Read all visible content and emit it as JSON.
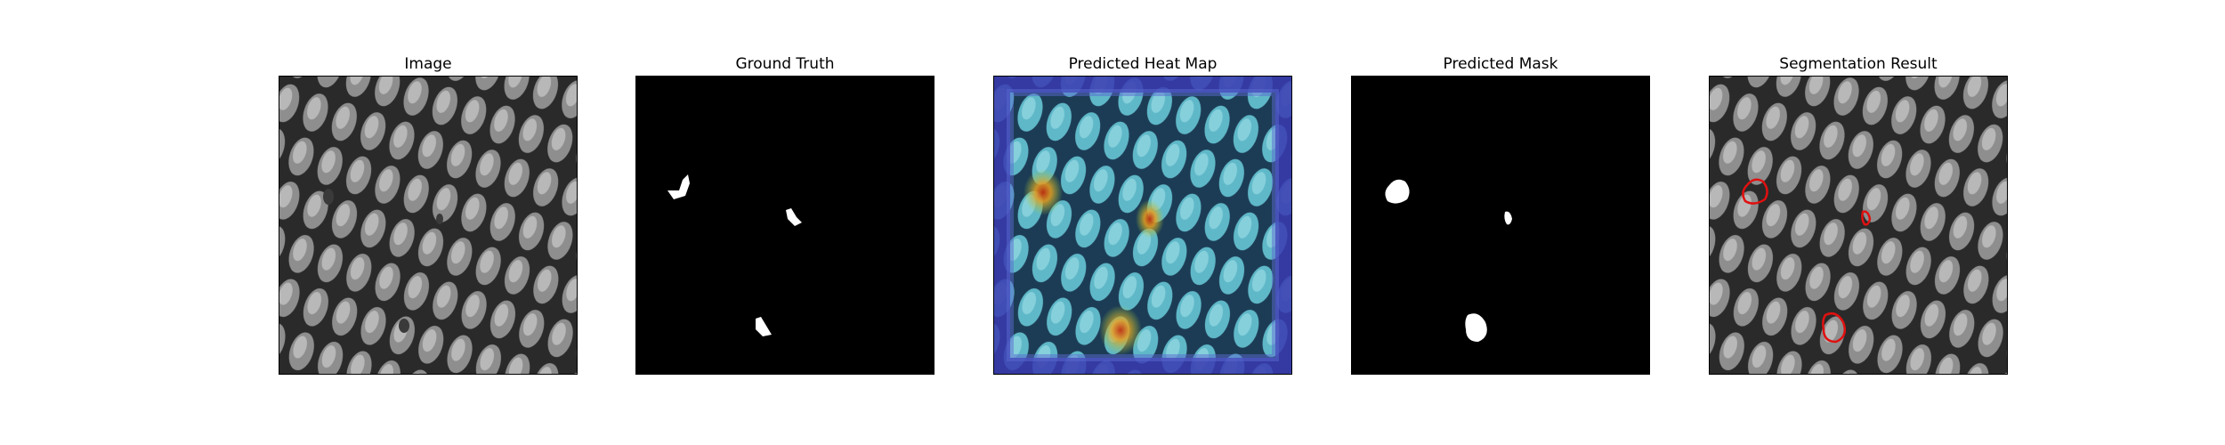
{
  "panels": [
    {
      "title": "Image"
    },
    {
      "title": "Ground Truth"
    },
    {
      "title": "Predicted Heat Map"
    },
    {
      "title": "Predicted Mask"
    },
    {
      "title": "Segmentation Result"
    }
  ],
  "colors": {
    "background": "#ffffff",
    "mesh_dark": "#2a2a2a",
    "mesh_light": "#9c9c9c",
    "mask_black": "#000000",
    "mask_white": "#ffffff",
    "heat_low": "#3a3ab0",
    "heat_mid": "#5fb8c8",
    "heat_high": "#e07a20",
    "contour": "#e01010"
  }
}
